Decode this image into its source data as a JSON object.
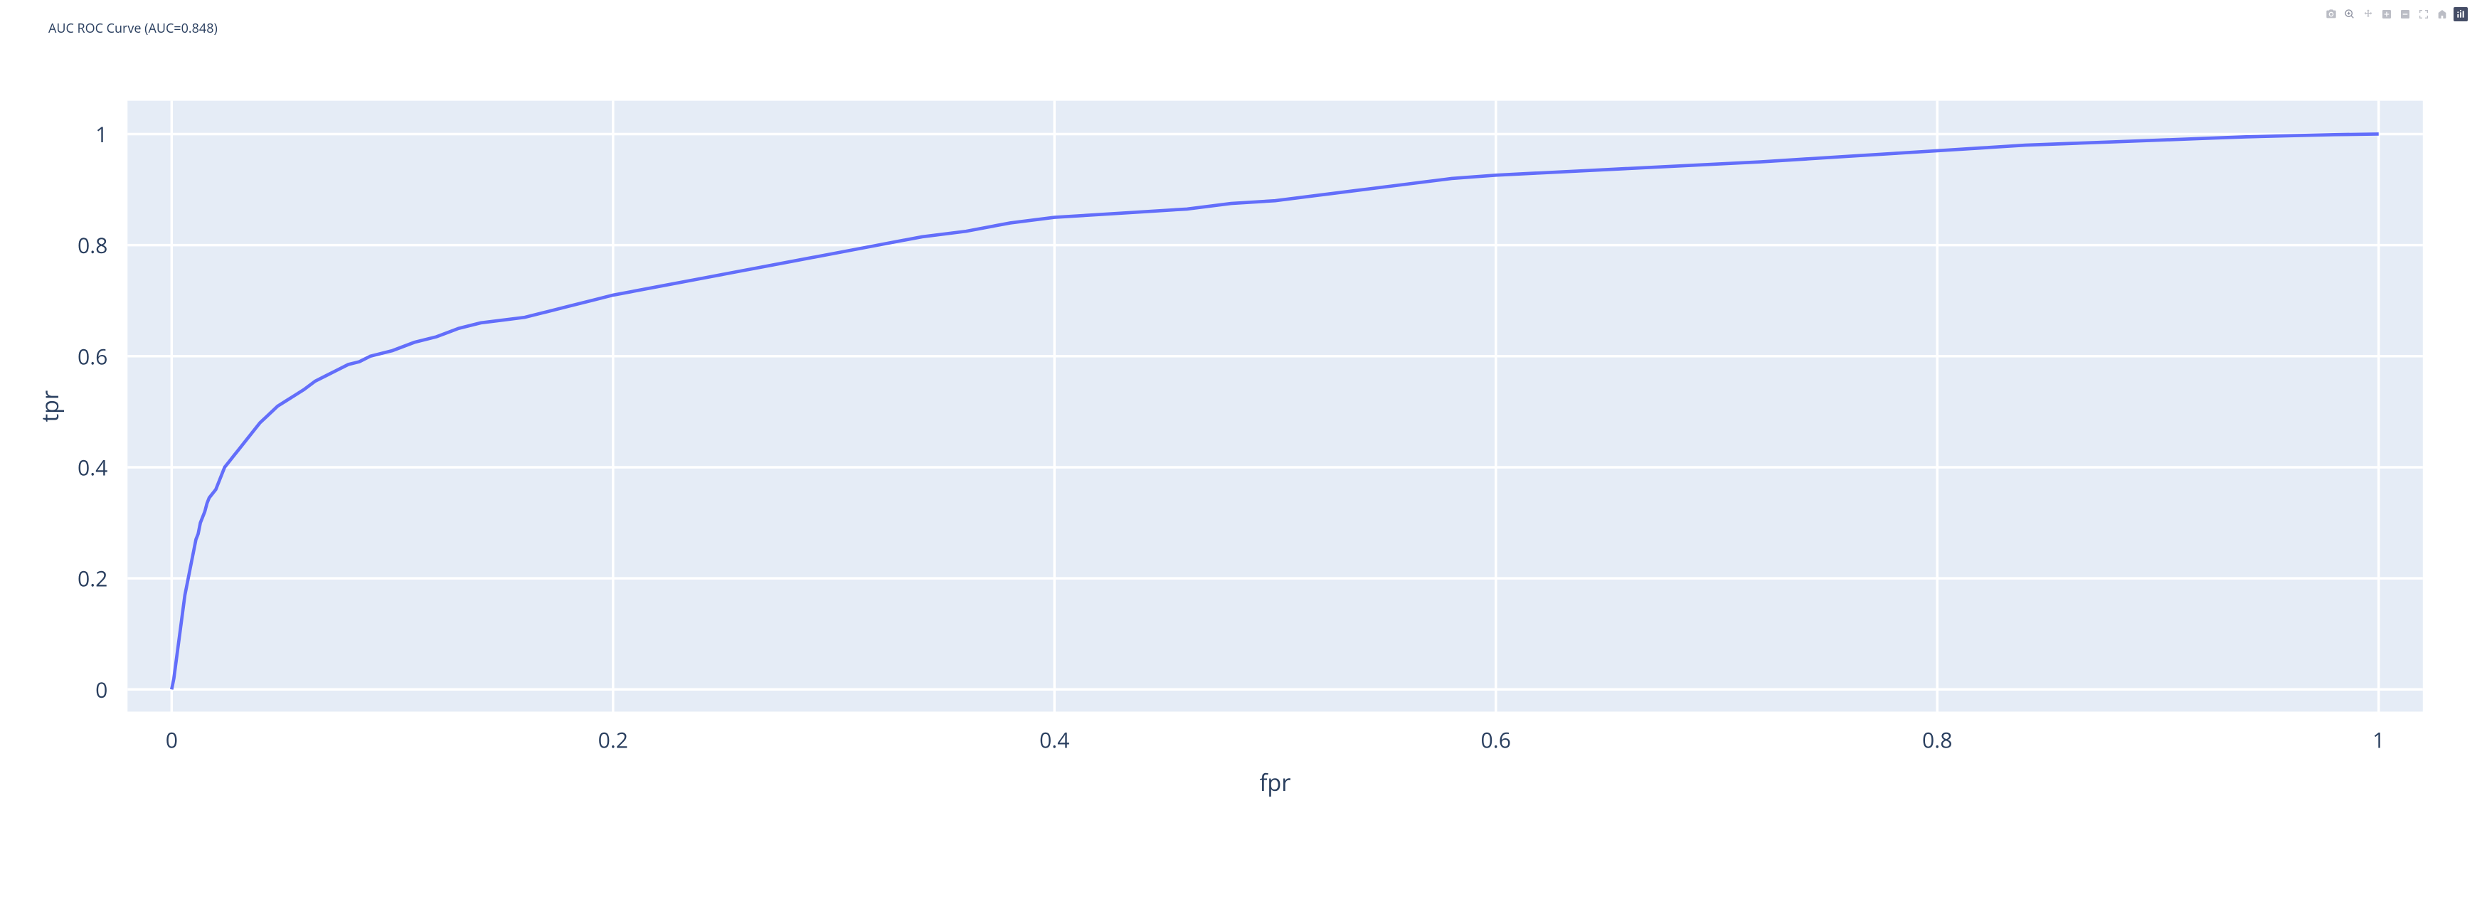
{
  "chart": {
    "type": "line",
    "title": "AUC ROC Curve (AUC=0.848)",
    "title_fontsize": 18,
    "title_color": "#2a3f5f",
    "xlabel": "fpr",
    "ylabel": "tpr",
    "label_fontsize": 14,
    "tick_fontsize": 13,
    "tick_color": "#2a3f5f",
    "plot_bgcolor": "#e5ecf6",
    "grid_color": "#ffffff",
    "line_color": "#636efa",
    "line_width": 2,
    "xlim": [
      -0.02,
      1.02
    ],
    "ylim": [
      -0.04,
      1.06
    ],
    "xticks": [
      0,
      0.2,
      0.4,
      0.6,
      0.8,
      1
    ],
    "yticks": [
      0,
      0.2,
      0.4,
      0.6,
      0.8,
      1
    ],
    "series": {
      "fpr": [
        0.0,
        0.001,
        0.002,
        0.003,
        0.004,
        0.005,
        0.006,
        0.007,
        0.008,
        0.009,
        0.01,
        0.011,
        0.012,
        0.013,
        0.014,
        0.015,
        0.016,
        0.017,
        0.018,
        0.019,
        0.02,
        0.022,
        0.024,
        0.026,
        0.028,
        0.03,
        0.033,
        0.036,
        0.04,
        0.044,
        0.048,
        0.052,
        0.056,
        0.06,
        0.065,
        0.07,
        0.075,
        0.08,
        0.085,
        0.09,
        0.1,
        0.11,
        0.12,
        0.13,
        0.14,
        0.15,
        0.16,
        0.17,
        0.18,
        0.19,
        0.2,
        0.22,
        0.24,
        0.26,
        0.28,
        0.3,
        0.32,
        0.34,
        0.36,
        0.38,
        0.4,
        0.42,
        0.44,
        0.46,
        0.48,
        0.5,
        0.52,
        0.54,
        0.56,
        0.58,
        0.6,
        0.62,
        0.64,
        0.66,
        0.68,
        0.7,
        0.72,
        0.74,
        0.76,
        0.78,
        0.8,
        0.82,
        0.84,
        0.86,
        0.88,
        0.9,
        0.92,
        0.94,
        0.96,
        0.98,
        1.0
      ],
      "tpr": [
        0.0,
        0.02,
        0.05,
        0.08,
        0.11,
        0.14,
        0.17,
        0.19,
        0.21,
        0.23,
        0.25,
        0.27,
        0.28,
        0.3,
        0.31,
        0.32,
        0.335,
        0.345,
        0.35,
        0.355,
        0.36,
        0.38,
        0.4,
        0.41,
        0.42,
        0.43,
        0.445,
        0.46,
        0.48,
        0.495,
        0.51,
        0.52,
        0.53,
        0.54,
        0.555,
        0.565,
        0.575,
        0.585,
        0.59,
        0.6,
        0.61,
        0.625,
        0.635,
        0.65,
        0.66,
        0.665,
        0.67,
        0.68,
        0.69,
        0.7,
        0.71,
        0.725,
        0.74,
        0.755,
        0.77,
        0.785,
        0.8,
        0.815,
        0.825,
        0.84,
        0.85,
        0.855,
        0.86,
        0.865,
        0.875,
        0.88,
        0.89,
        0.9,
        0.91,
        0.92,
        0.926,
        0.93,
        0.934,
        0.938,
        0.942,
        0.946,
        0.95,
        0.955,
        0.96,
        0.965,
        0.97,
        0.975,
        0.98,
        0.983,
        0.986,
        0.989,
        0.992,
        0.995,
        0.997,
        0.999,
        1.0
      ]
    }
  },
  "modebar": {
    "tools": [
      {
        "name": "camera-icon",
        "title": "Download plot as a png"
      },
      {
        "name": "zoom-icon",
        "title": "Zoom"
      },
      {
        "name": "pan-icon",
        "title": "Pan"
      },
      {
        "name": "zoom-in-icon",
        "title": "Zoom in"
      },
      {
        "name": "zoom-out-icon",
        "title": "Zoom out"
      },
      {
        "name": "autoscale-icon",
        "title": "Autoscale"
      },
      {
        "name": "reset-axes-icon",
        "title": "Reset axes"
      },
      {
        "name": "plotly-logo-icon",
        "title": "Produced with Plotly"
      }
    ],
    "active_index": 7
  }
}
